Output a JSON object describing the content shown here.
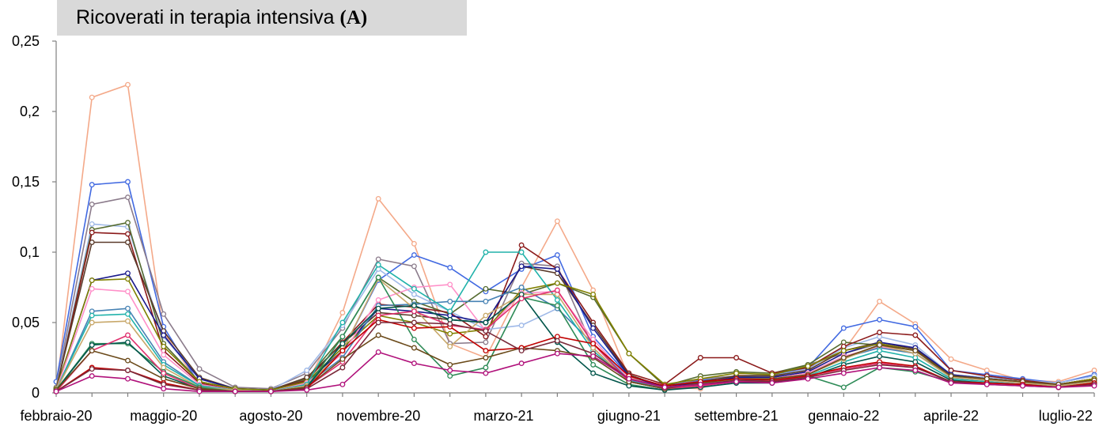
{
  "chart_data": {
    "type": "line",
    "title": {
      "main": "Ricoverati in terapia intensiva",
      "tag": "(A)"
    },
    "xlabel": "",
    "ylabel": "",
    "x": [
      "febbraio-20",
      "marzo-20",
      "aprile-20",
      "maggio-20",
      "giugno-20",
      "luglio-20",
      "agosto-20",
      "settembre-20",
      "ottobre-20",
      "novembre-20",
      "dicembre-20",
      "gennaio-21",
      "febbraio-21",
      "marzo-21",
      "aprile-21",
      "maggio-21",
      "giugno-21",
      "luglio-21",
      "agosto-21",
      "settembre-21",
      "ottobre-21",
      "novembre-21",
      "dicembre-21",
      "gennaio-22",
      "febbraio-22",
      "marzo-22",
      "aprile-22",
      "maggio-22",
      "giugno-22",
      "luglio-22"
    ],
    "x_tick_labels": [
      "febbraio-20",
      "maggio-20",
      "agosto-20",
      "novembre-20",
      "marzo-21",
      "giugno-21",
      "settembre-21",
      "gennaio-22",
      "aprile-22",
      "luglio-22"
    ],
    "x_tick_index": [
      0,
      3,
      6,
      9,
      12.5,
      16,
      19,
      22,
      25,
      28.2
    ],
    "y_tick_labels": [
      "0",
      "0,05",
      "0,1",
      "0,15",
      "0,2",
      "0,25"
    ],
    "y_ticks": [
      0,
      0.05,
      0.1,
      0.15,
      0.2,
      0.25
    ],
    "ylim": [
      0,
      0.25
    ],
    "grid": false,
    "legend": "none",
    "series": [
      {
        "color": "#f4a989",
        "values": [
          0.002,
          0.21,
          0.219,
          0.043,
          0.006,
          0.002,
          0.001,
          0.006,
          0.057,
          0.138,
          0.106,
          0.035,
          0.025,
          0.075,
          0.122,
          0.073,
          0.011,
          0.004,
          0.003,
          0.013,
          0.011,
          0.018,
          0.03,
          0.065,
          0.049,
          0.024,
          0.016,
          0.009,
          0.008,
          0.016
        ]
      },
      {
        "color": "#4169e1",
        "values": [
          0.008,
          0.148,
          0.15,
          0.047,
          0.006,
          0.002,
          0.001,
          0.004,
          0.03,
          0.08,
          0.098,
          0.089,
          0.072,
          0.088,
          0.098,
          0.04,
          0.012,
          0.005,
          0.009,
          0.011,
          0.013,
          0.018,
          0.046,
          0.052,
          0.047,
          0.016,
          0.013,
          0.01,
          0.007,
          0.013
        ]
      },
      {
        "color": "#8b7b8b",
        "values": [
          0.004,
          0.134,
          0.139,
          0.056,
          0.017,
          0.004,
          0.003,
          0.014,
          0.046,
          0.095,
          0.09,
          0.035,
          0.036,
          0.092,
          0.09,
          0.032,
          0.008,
          0.003,
          0.01,
          0.012,
          0.013,
          0.02,
          0.028,
          0.035,
          0.03,
          0.012,
          0.01,
          0.008,
          0.006,
          0.01
        ]
      },
      {
        "color": "#9fb9e8",
        "values": [
          0.003,
          0.12,
          0.118,
          0.04,
          0.01,
          0.003,
          0.002,
          0.016,
          0.048,
          0.088,
          0.07,
          0.058,
          0.045,
          0.048,
          0.06,
          0.035,
          0.01,
          0.004,
          0.008,
          0.01,
          0.012,
          0.017,
          0.032,
          0.04,
          0.034,
          0.013,
          0.011,
          0.009,
          0.007,
          0.012
        ]
      },
      {
        "color": "#556b2f",
        "values": [
          0.002,
          0.116,
          0.121,
          0.035,
          0.008,
          0.003,
          0.002,
          0.01,
          0.04,
          0.082,
          0.065,
          0.056,
          0.074,
          0.07,
          0.078,
          0.068,
          0.028,
          0.005,
          0.012,
          0.015,
          0.014,
          0.02,
          0.036,
          0.034,
          0.028,
          0.012,
          0.01,
          0.008,
          0.006,
          0.01
        ]
      },
      {
        "color": "#8b1a1a",
        "values": [
          0.002,
          0.114,
          0.113,
          0.03,
          0.007,
          0.002,
          0.002,
          0.009,
          0.036,
          0.063,
          0.061,
          0.057,
          0.04,
          0.105,
          0.088,
          0.05,
          0.014,
          0.006,
          0.025,
          0.025,
          0.014,
          0.018,
          0.033,
          0.043,
          0.041,
          0.016,
          0.012,
          0.009,
          0.006,
          0.01
        ]
      },
      {
        "color": "#5a3a2a",
        "values": [
          0.003,
          0.107,
          0.107,
          0.044,
          0.011,
          0.003,
          0.002,
          0.011,
          0.035,
          0.057,
          0.055,
          0.052,
          0.05,
          0.09,
          0.085,
          0.048,
          0.013,
          0.004,
          0.008,
          0.012,
          0.012,
          0.016,
          0.03,
          0.036,
          0.031,
          0.013,
          0.01,
          0.008,
          0.006,
          0.01
        ]
      },
      {
        "color": "#1a1a8c",
        "values": [
          0.003,
          0.08,
          0.085,
          0.041,
          0.01,
          0.003,
          0.002,
          0.008,
          0.03,
          0.06,
          0.058,
          0.055,
          0.05,
          0.09,
          0.088,
          0.046,
          0.012,
          0.004,
          0.007,
          0.011,
          0.011,
          0.015,
          0.028,
          0.036,
          0.032,
          0.013,
          0.01,
          0.008,
          0.006,
          0.009
        ]
      },
      {
        "color": "#808000",
        "values": [
          0.003,
          0.08,
          0.081,
          0.033,
          0.008,
          0.003,
          0.002,
          0.008,
          0.032,
          0.055,
          0.05,
          0.042,
          0.045,
          0.073,
          0.078,
          0.07,
          0.028,
          0.006,
          0.01,
          0.014,
          0.013,
          0.019,
          0.03,
          0.035,
          0.03,
          0.012,
          0.01,
          0.008,
          0.006,
          0.01
        ]
      },
      {
        "color": "#ff8fc8",
        "values": [
          0.002,
          0.074,
          0.072,
          0.027,
          0.006,
          0.002,
          0.001,
          0.007,
          0.028,
          0.066,
          0.075,
          0.077,
          0.044,
          0.071,
          0.072,
          0.038,
          0.01,
          0.004,
          0.006,
          0.01,
          0.01,
          0.014,
          0.026,
          0.033,
          0.028,
          0.011,
          0.009,
          0.007,
          0.005,
          0.009
        ]
      },
      {
        "color": "#4682b4",
        "values": [
          0.002,
          0.058,
          0.06,
          0.022,
          0.005,
          0.002,
          0.001,
          0.006,
          0.025,
          0.062,
          0.063,
          0.065,
          0.065,
          0.075,
          0.06,
          0.035,
          0.009,
          0.003,
          0.006,
          0.009,
          0.009,
          0.013,
          0.025,
          0.032,
          0.028,
          0.011,
          0.009,
          0.007,
          0.005,
          0.008
        ]
      },
      {
        "color": "#20b2aa",
        "values": [
          0.002,
          0.055,
          0.056,
          0.02,
          0.005,
          0.002,
          0.001,
          0.006,
          0.05,
          0.091,
          0.074,
          0.058,
          0.1,
          0.1,
          0.066,
          0.03,
          0.008,
          0.003,
          0.005,
          0.008,
          0.008,
          0.012,
          0.022,
          0.03,
          0.025,
          0.01,
          0.008,
          0.006,
          0.005,
          0.008
        ]
      },
      {
        "color": "#c8a86a",
        "values": [
          0.002,
          0.05,
          0.051,
          0.018,
          0.004,
          0.002,
          0.001,
          0.005,
          0.03,
          0.081,
          0.06,
          0.033,
          0.055,
          0.07,
          0.07,
          0.032,
          0.008,
          0.003,
          0.006,
          0.01,
          0.01,
          0.013,
          0.024,
          0.034,
          0.028,
          0.011,
          0.009,
          0.007,
          0.005,
          0.008
        ]
      },
      {
        "color": "#2e8b57",
        "values": [
          0.002,
          0.035,
          0.035,
          0.015,
          0.004,
          0.001,
          0.001,
          0.004,
          0.04,
          0.082,
          0.038,
          0.012,
          0.018,
          0.068,
          0.062,
          0.02,
          0.006,
          0.002,
          0.005,
          0.008,
          0.008,
          0.012,
          0.004,
          0.018,
          0.015,
          0.008,
          0.007,
          0.006,
          0.004,
          0.007
        ]
      },
      {
        "color": "#00554a",
        "values": [
          0.002,
          0.034,
          0.036,
          0.012,
          0.003,
          0.001,
          0.001,
          0.004,
          0.035,
          0.06,
          0.062,
          0.052,
          0.05,
          0.07,
          0.036,
          0.014,
          0.005,
          0.002,
          0.004,
          0.007,
          0.007,
          0.011,
          0.02,
          0.026,
          0.022,
          0.009,
          0.007,
          0.006,
          0.004,
          0.007
        ]
      },
      {
        "color": "#e0306e",
        "values": [
          0.001,
          0.03,
          0.041,
          0.014,
          0.003,
          0.001,
          0.001,
          0.004,
          0.022,
          0.055,
          0.058,
          0.048,
          0.045,
          0.067,
          0.073,
          0.035,
          0.008,
          0.003,
          0.005,
          0.008,
          0.008,
          0.012,
          0.017,
          0.021,
          0.018,
          0.008,
          0.007,
          0.006,
          0.004,
          0.007
        ]
      },
      {
        "color": "#6b4a1a",
        "values": [
          0.002,
          0.03,
          0.023,
          0.01,
          0.003,
          0.001,
          0.001,
          0.004,
          0.024,
          0.041,
          0.032,
          0.02,
          0.025,
          0.032,
          0.03,
          0.025,
          0.008,
          0.003,
          0.007,
          0.01,
          0.01,
          0.013,
          0.025,
          0.034,
          0.03,
          0.012,
          0.01,
          0.008,
          0.006,
          0.009
        ]
      },
      {
        "color": "#c00000",
        "values": [
          0.001,
          0.018,
          0.016,
          0.007,
          0.002,
          0.001,
          0.001,
          0.003,
          0.03,
          0.052,
          0.046,
          0.047,
          0.03,
          0.032,
          0.04,
          0.035,
          0.012,
          0.005,
          0.008,
          0.01,
          0.009,
          0.012,
          0.018,
          0.022,
          0.019,
          0.008,
          0.007,
          0.006,
          0.004,
          0.007
        ]
      },
      {
        "color": "#7a2a3a",
        "values": [
          0.001,
          0.017,
          0.016,
          0.006,
          0.002,
          0.001,
          0.001,
          0.003,
          0.018,
          0.05,
          0.05,
          0.049,
          0.044,
          0.03,
          0.037,
          0.028,
          0.01,
          0.004,
          0.006,
          0.009,
          0.008,
          0.011,
          0.016,
          0.02,
          0.018,
          0.008,
          0.006,
          0.005,
          0.004,
          0.006
        ]
      },
      {
        "color": "#b0107a",
        "values": [
          0.001,
          0.012,
          0.01,
          0.003,
          0.001,
          0.001,
          0.001,
          0.002,
          0.006,
          0.029,
          0.021,
          0.016,
          0.014,
          0.021,
          0.028,
          0.026,
          0.01,
          0.004,
          0.006,
          0.008,
          0.007,
          0.01,
          0.014,
          0.018,
          0.016,
          0.007,
          0.006,
          0.005,
          0.004,
          0.005
        ]
      }
    ]
  }
}
